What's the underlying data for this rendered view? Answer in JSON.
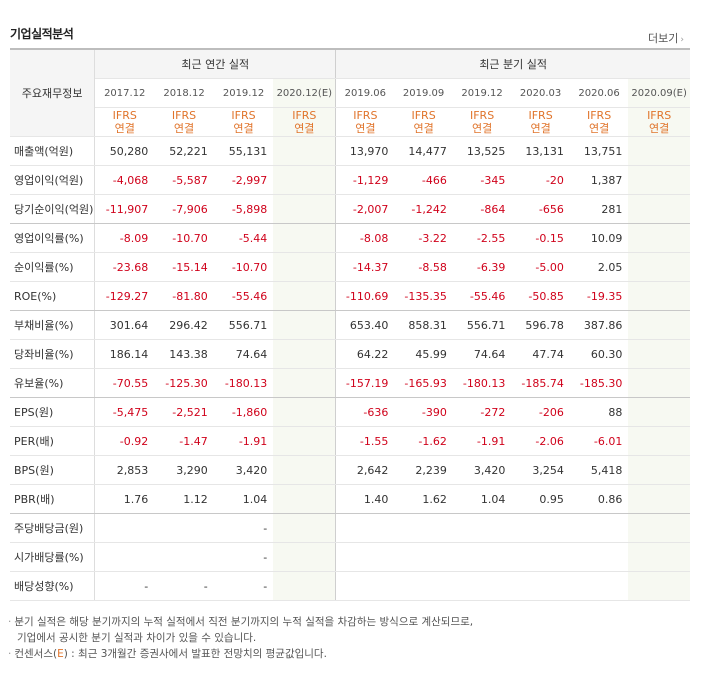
{
  "title": "기업실적분석",
  "more_label": "더보기",
  "header": {
    "label_col": "주요재무정보",
    "annual_group": "최근 연간 실적",
    "quarter_group": "최근 분기 실적",
    "annual_periods": [
      "2017.12",
      "2018.12",
      "2019.12",
      "2020.12(E)"
    ],
    "quarter_periods": [
      "2019.06",
      "2019.09",
      "2019.12",
      "2020.03",
      "2020.06",
      "2020.09(E)"
    ],
    "basis_line1": "IFRS",
    "basis_line2": "연결"
  },
  "rows": [
    {
      "label": "매출액(억원)",
      "annual": [
        "50,280",
        "52,221",
        "55,131",
        ""
      ],
      "quarter": [
        "13,970",
        "14,477",
        "13,525",
        "13,131",
        "13,751",
        ""
      ]
    },
    {
      "label": "영업이익(억원)",
      "annual": [
        "-4,068",
        "-5,587",
        "-2,997",
        ""
      ],
      "quarter": [
        "-1,129",
        "-466",
        "-345",
        "-20",
        "1,387",
        ""
      ]
    },
    {
      "label": "당기순이익(억원)",
      "annual": [
        "-11,907",
        "-7,906",
        "-5,898",
        ""
      ],
      "quarter": [
        "-2,007",
        "-1,242",
        "-864",
        "-656",
        "281",
        ""
      ]
    },
    {
      "label": "영업이익률(%)",
      "annual": [
        "-8.09",
        "-10.70",
        "-5.44",
        ""
      ],
      "quarter": [
        "-8.08",
        "-3.22",
        "-2.55",
        "-0.15",
        "10.09",
        ""
      ]
    },
    {
      "label": "순이익률(%)",
      "annual": [
        "-23.68",
        "-15.14",
        "-10.70",
        ""
      ],
      "quarter": [
        "-14.37",
        "-8.58",
        "-6.39",
        "-5.00",
        "2.05",
        ""
      ]
    },
    {
      "label": "ROE(%)",
      "annual": [
        "-129.27",
        "-81.80",
        "-55.46",
        ""
      ],
      "quarter": [
        "-110.69",
        "-135.35",
        "-55.46",
        "-50.85",
        "-19.35",
        ""
      ]
    },
    {
      "label": "부채비율(%)",
      "annual": [
        "301.64",
        "296.42",
        "556.71",
        ""
      ],
      "quarter": [
        "653.40",
        "858.31",
        "556.71",
        "596.78",
        "387.86",
        ""
      ]
    },
    {
      "label": "당좌비율(%)",
      "annual": [
        "186.14",
        "143.38",
        "74.64",
        ""
      ],
      "quarter": [
        "64.22",
        "45.99",
        "74.64",
        "47.74",
        "60.30",
        ""
      ]
    },
    {
      "label": "유보율(%)",
      "annual": [
        "-70.55",
        "-125.30",
        "-180.13",
        ""
      ],
      "quarter": [
        "-157.19",
        "-165.93",
        "-180.13",
        "-185.74",
        "-185.30",
        ""
      ]
    },
    {
      "label": "EPS(원)",
      "annual": [
        "-5,475",
        "-2,521",
        "-1,860",
        ""
      ],
      "quarter": [
        "-636",
        "-390",
        "-272",
        "-206",
        "88",
        ""
      ]
    },
    {
      "label": "PER(배)",
      "annual": [
        "-0.92",
        "-1.47",
        "-1.91",
        ""
      ],
      "quarter": [
        "-1.55",
        "-1.62",
        "-1.91",
        "-2.06",
        "-6.01",
        ""
      ]
    },
    {
      "label": "BPS(원)",
      "annual": [
        "2,853",
        "3,290",
        "3,420",
        ""
      ],
      "quarter": [
        "2,642",
        "2,239",
        "3,420",
        "3,254",
        "5,418",
        ""
      ]
    },
    {
      "label": "PBR(배)",
      "annual": [
        "1.76",
        "1.12",
        "1.04",
        ""
      ],
      "quarter": [
        "1.40",
        "1.62",
        "1.04",
        "0.95",
        "0.86",
        ""
      ]
    },
    {
      "label": "주당배당금(원)",
      "annual": [
        "",
        "",
        "-",
        ""
      ],
      "quarter": [
        "",
        "",
        "",
        "",
        "",
        ""
      ]
    },
    {
      "label": "시가배당률(%)",
      "annual": [
        "",
        "",
        "-",
        ""
      ],
      "quarter": [
        "",
        "",
        "",
        "",
        "",
        ""
      ]
    },
    {
      "label": "배당성향(%)",
      "annual": [
        "-",
        "-",
        "-",
        ""
      ],
      "quarter": [
        "",
        "",
        "",
        "",
        "",
        ""
      ]
    }
  ],
  "group_breaks": [
    2,
    5,
    8,
    12
  ],
  "notes": {
    "line1": "분기 실적은 해당 분기까지의 누적 실적에서 직전 분기까지의 누적 실적을 차감하는 방식으로 계산되므로,",
    "line2": "기업에서 공시한 분기 실적과 차이가 있을 수 있습니다.",
    "line3_prefix": "컨센서스(",
    "line3_e": "E",
    "line3_suffix": ") : 최근 3개월간 증권사에서 발표한 전망치의 평균값입니다."
  },
  "colors": {
    "negative": "#d0021b",
    "basis": "#e0742b",
    "estimate_bg": "#f7f9f2"
  }
}
